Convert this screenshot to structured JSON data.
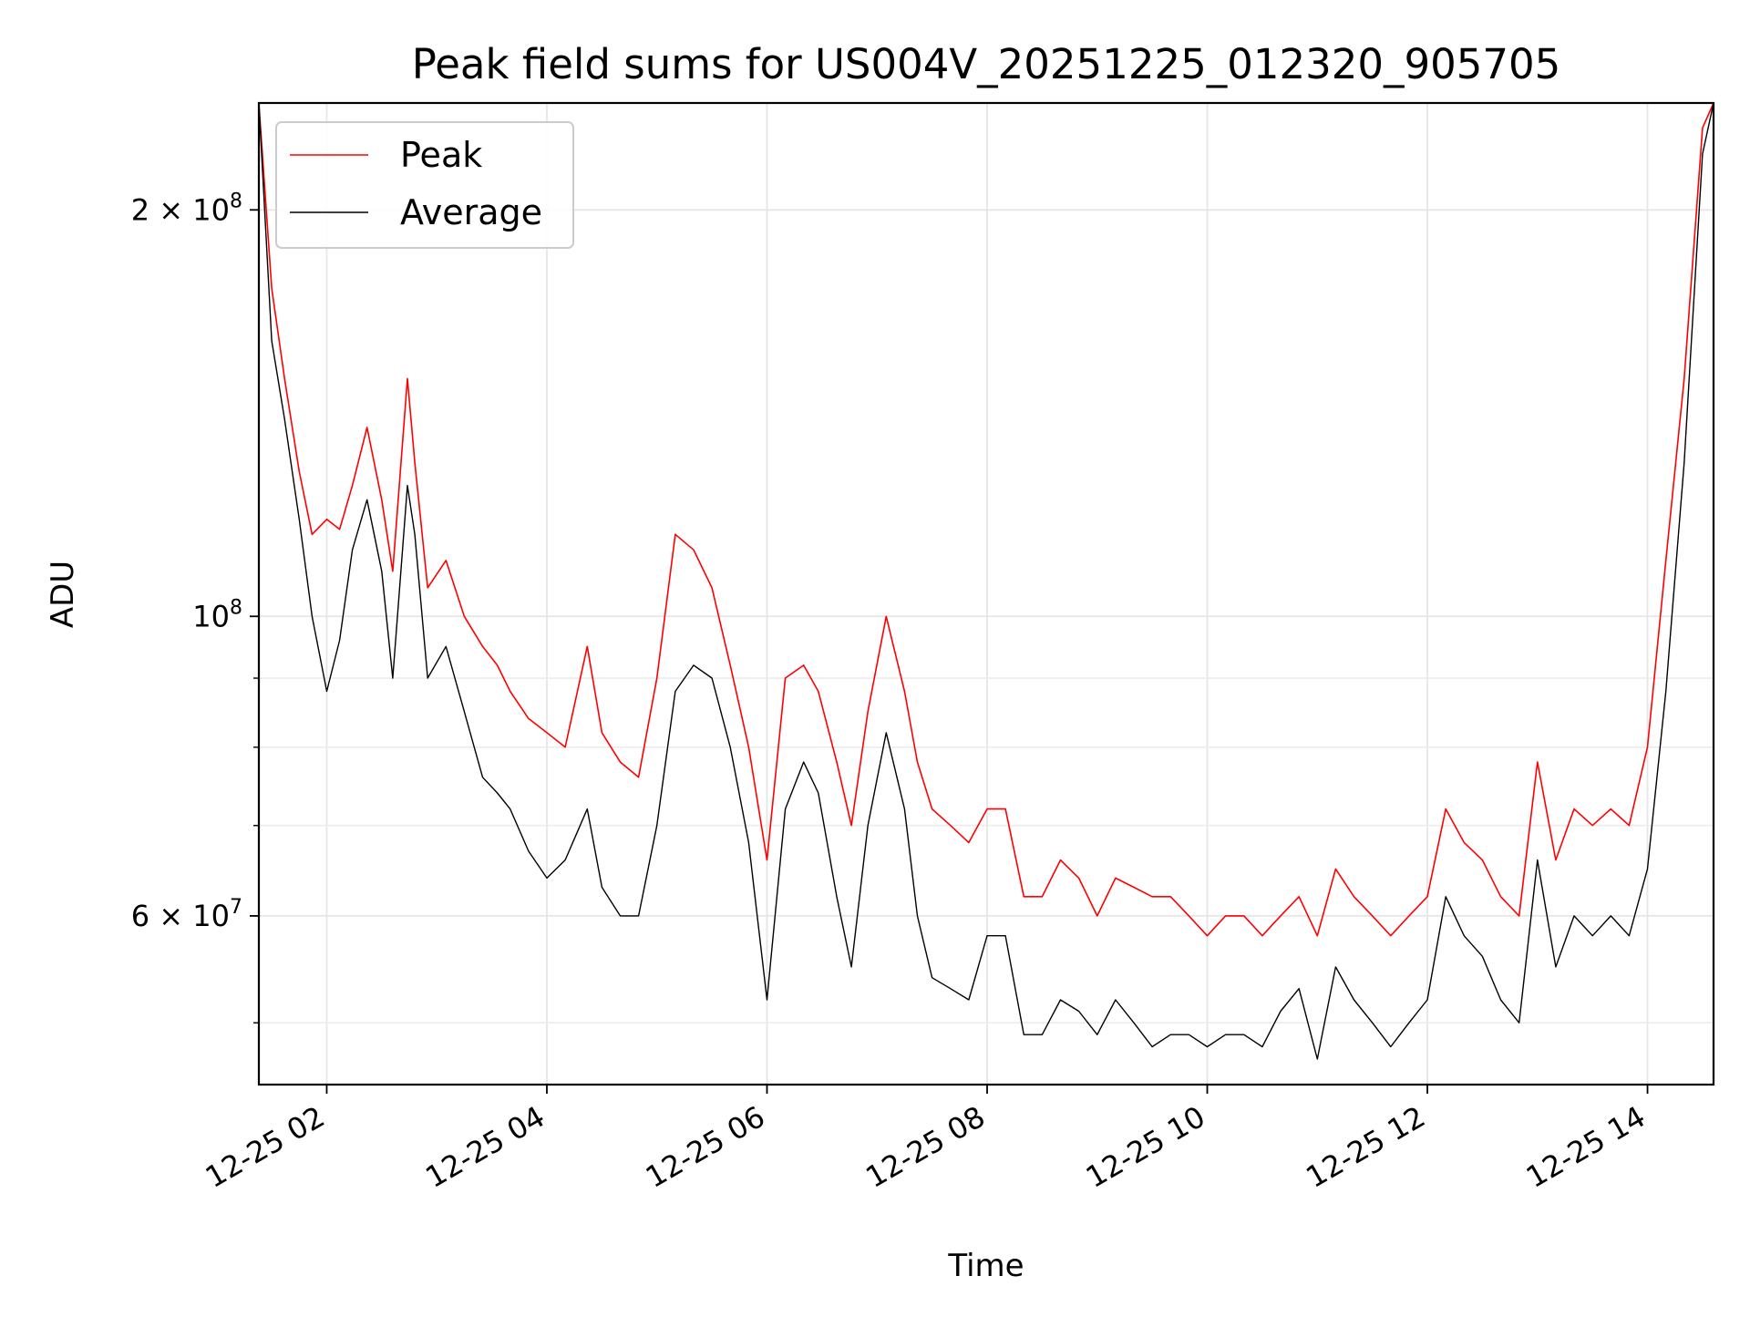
{
  "chart_data": {
    "type": "line",
    "title": "Peak field sums for US004V_20251225_012320_905705",
    "xlabel": "Time",
    "ylabel": "ADU",
    "y_scale": "log",
    "x_range": [
      "2025-12-25 01:23",
      "2025-12-25 14:36"
    ],
    "ylim": [
      45000000,
      240000000
    ],
    "grid": true,
    "legend_position": "upper left",
    "x_ticks": [
      {
        "value": "2025-12-25 02:00",
        "label": "12-25 02"
      },
      {
        "value": "2025-12-25 04:00",
        "label": "12-25 04"
      },
      {
        "value": "2025-12-25 06:00",
        "label": "12-25 06"
      },
      {
        "value": "2025-12-25 08:00",
        "label": "12-25 08"
      },
      {
        "value": "2025-12-25 10:00",
        "label": "12-25 10"
      },
      {
        "value": "2025-12-25 12:00",
        "label": "12-25 12"
      },
      {
        "value": "2025-12-25 14:00",
        "label": "12-25 14"
      }
    ],
    "y_ticks": [
      {
        "value": 60000000,
        "label": "6 × 10⁷",
        "mantissa": "6",
        "exp": "7"
      },
      {
        "value": 100000000,
        "label": "10⁸",
        "mantissa": "",
        "exp": "8"
      },
      {
        "value": 200000000,
        "label": "2 × 10⁸",
        "mantissa": "2",
        "exp": "8"
      }
    ],
    "y_minor_ticks": [
      50000000,
      70000000,
      80000000,
      90000000
    ],
    "series": [
      {
        "name": "Peak",
        "color": "#ff0000",
        "x": [
          "2025-12-25 01:23",
          "2025-12-25 01:30",
          "2025-12-25 01:37",
          "2025-12-25 01:45",
          "2025-12-25 01:52",
          "2025-12-25 02:00",
          "2025-12-25 02:07",
          "2025-12-25 02:14",
          "2025-12-25 02:22",
          "2025-12-25 02:30",
          "2025-12-25 02:36",
          "2025-12-25 02:44",
          "2025-12-25 02:48",
          "2025-12-25 02:55",
          "2025-12-25 03:05",
          "2025-12-25 03:15",
          "2025-12-25 03:25",
          "2025-12-25 03:33",
          "2025-12-25 03:40",
          "2025-12-25 03:50",
          "2025-12-25 04:00",
          "2025-12-25 04:10",
          "2025-12-25 04:22",
          "2025-12-25 04:30",
          "2025-12-25 04:40",
          "2025-12-25 04:50",
          "2025-12-25 05:00",
          "2025-12-25 05:10",
          "2025-12-25 05:20",
          "2025-12-25 05:30",
          "2025-12-25 05:40",
          "2025-12-25 05:50",
          "2025-12-25 06:00",
          "2025-12-25 06:10",
          "2025-12-25 06:20",
          "2025-12-25 06:28",
          "2025-12-25 06:38",
          "2025-12-25 06:46",
          "2025-12-25 06:55",
          "2025-12-25 07:05",
          "2025-12-25 07:15",
          "2025-12-25 07:22",
          "2025-12-25 07:30",
          "2025-12-25 07:40",
          "2025-12-25 07:50",
          "2025-12-25 08:00",
          "2025-12-25 08:10",
          "2025-12-25 08:20",
          "2025-12-25 08:30",
          "2025-12-25 08:40",
          "2025-12-25 08:50",
          "2025-12-25 09:00",
          "2025-12-25 09:10",
          "2025-12-25 09:20",
          "2025-12-25 09:30",
          "2025-12-25 09:40",
          "2025-12-25 09:50",
          "2025-12-25 10:00",
          "2025-12-25 10:10",
          "2025-12-25 10:20",
          "2025-12-25 10:30",
          "2025-12-25 10:40",
          "2025-12-25 10:50",
          "2025-12-25 11:00",
          "2025-12-25 11:10",
          "2025-12-25 11:20",
          "2025-12-25 11:30",
          "2025-12-25 11:40",
          "2025-12-25 11:50",
          "2025-12-25 12:00",
          "2025-12-25 12:10",
          "2025-12-25 12:20",
          "2025-12-25 12:30",
          "2025-12-25 12:40",
          "2025-12-25 12:50",
          "2025-12-25 13:00",
          "2025-12-25 13:10",
          "2025-12-25 13:20",
          "2025-12-25 13:30",
          "2025-12-25 13:40",
          "2025-12-25 13:50",
          "2025-12-25 14:00",
          "2025-12-25 14:10",
          "2025-12-25 14:20",
          "2025-12-25 14:30",
          "2025-12-25 14:36"
        ],
        "y": [
          240000000,
          175000000,
          150000000,
          128000000,
          115000000,
          118000000,
          116000000,
          125000000,
          138000000,
          122000000,
          108000000,
          150000000,
          130000000,
          105000000,
          110000000,
          100000000,
          95000000,
          92000000,
          88000000,
          84000000,
          82000000,
          80000000,
          95000000,
          82000000,
          78000000,
          76000000,
          90000000,
          115000000,
          112000000,
          105000000,
          92000000,
          80000000,
          66000000,
          90000000,
          92000000,
          88000000,
          78000000,
          70000000,
          85000000,
          100000000,
          88000000,
          78000000,
          72000000,
          70000000,
          68000000,
          72000000,
          72000000,
          62000000,
          62000000,
          66000000,
          64000000,
          60000000,
          64000000,
          63000000,
          62000000,
          62000000,
          60000000,
          58000000,
          60000000,
          60000000,
          58000000,
          60000000,
          62000000,
          58000000,
          65000000,
          62000000,
          60000000,
          58000000,
          60000000,
          62000000,
          72000000,
          68000000,
          66000000,
          62000000,
          60000000,
          78000000,
          66000000,
          72000000,
          70000000,
          72000000,
          70000000,
          80000000,
          110000000,
          150000000,
          230000000,
          240000000
        ]
      },
      {
        "name": "Average",
        "color": "#000000",
        "x": [
          "2025-12-25 01:23",
          "2025-12-25 01:30",
          "2025-12-25 01:37",
          "2025-12-25 01:45",
          "2025-12-25 01:52",
          "2025-12-25 02:00",
          "2025-12-25 02:07",
          "2025-12-25 02:14",
          "2025-12-25 02:22",
          "2025-12-25 02:30",
          "2025-12-25 02:36",
          "2025-12-25 02:44",
          "2025-12-25 02:48",
          "2025-12-25 02:55",
          "2025-12-25 03:05",
          "2025-12-25 03:15",
          "2025-12-25 03:25",
          "2025-12-25 03:33",
          "2025-12-25 03:40",
          "2025-12-25 03:50",
          "2025-12-25 04:00",
          "2025-12-25 04:10",
          "2025-12-25 04:22",
          "2025-12-25 04:30",
          "2025-12-25 04:40",
          "2025-12-25 04:50",
          "2025-12-25 05:00",
          "2025-12-25 05:10",
          "2025-12-25 05:20",
          "2025-12-25 05:30",
          "2025-12-25 05:40",
          "2025-12-25 05:50",
          "2025-12-25 06:00",
          "2025-12-25 06:10",
          "2025-12-25 06:20",
          "2025-12-25 06:28",
          "2025-12-25 06:38",
          "2025-12-25 06:46",
          "2025-12-25 06:55",
          "2025-12-25 07:05",
          "2025-12-25 07:15",
          "2025-12-25 07:22",
          "2025-12-25 07:30",
          "2025-12-25 07:40",
          "2025-12-25 07:50",
          "2025-12-25 08:00",
          "2025-12-25 08:10",
          "2025-12-25 08:20",
          "2025-12-25 08:30",
          "2025-12-25 08:40",
          "2025-12-25 08:50",
          "2025-12-25 09:00",
          "2025-12-25 09:10",
          "2025-12-25 09:20",
          "2025-12-25 09:30",
          "2025-12-25 09:40",
          "2025-12-25 09:50",
          "2025-12-25 10:00",
          "2025-12-25 10:10",
          "2025-12-25 10:20",
          "2025-12-25 10:30",
          "2025-12-25 10:40",
          "2025-12-25 10:50",
          "2025-12-25 11:00",
          "2025-12-25 11:10",
          "2025-12-25 11:20",
          "2025-12-25 11:30",
          "2025-12-25 11:40",
          "2025-12-25 11:50",
          "2025-12-25 12:00",
          "2025-12-25 12:10",
          "2025-12-25 12:20",
          "2025-12-25 12:30",
          "2025-12-25 12:40",
          "2025-12-25 12:50",
          "2025-12-25 13:00",
          "2025-12-25 13:10",
          "2025-12-25 13:20",
          "2025-12-25 13:30",
          "2025-12-25 13:40",
          "2025-12-25 13:50",
          "2025-12-25 14:00",
          "2025-12-25 14:10",
          "2025-12-25 14:20",
          "2025-12-25 14:30",
          "2025-12-25 14:36"
        ],
        "y": [
          240000000,
          160000000,
          140000000,
          118000000,
          100000000,
          88000000,
          96000000,
          112000000,
          122000000,
          108000000,
          90000000,
          125000000,
          115000000,
          90000000,
          95000000,
          85000000,
          76000000,
          74000000,
          72000000,
          67000000,
          64000000,
          66000000,
          72000000,
          63000000,
          60000000,
          60000000,
          70000000,
          88000000,
          92000000,
          90000000,
          80000000,
          68000000,
          52000000,
          72000000,
          78000000,
          74000000,
          62000000,
          55000000,
          70000000,
          82000000,
          72000000,
          60000000,
          54000000,
          53000000,
          52000000,
          58000000,
          58000000,
          49000000,
          49000000,
          52000000,
          51000000,
          49000000,
          52000000,
          50000000,
          48000000,
          49000000,
          49000000,
          48000000,
          49000000,
          49000000,
          48000000,
          51000000,
          53000000,
          47000000,
          55000000,
          52000000,
          50000000,
          48000000,
          50000000,
          52000000,
          62000000,
          58000000,
          56000000,
          52000000,
          50000000,
          66000000,
          55000000,
          60000000,
          58000000,
          60000000,
          58000000,
          65000000,
          88000000,
          130000000,
          220000000,
          240000000
        ]
      }
    ]
  }
}
